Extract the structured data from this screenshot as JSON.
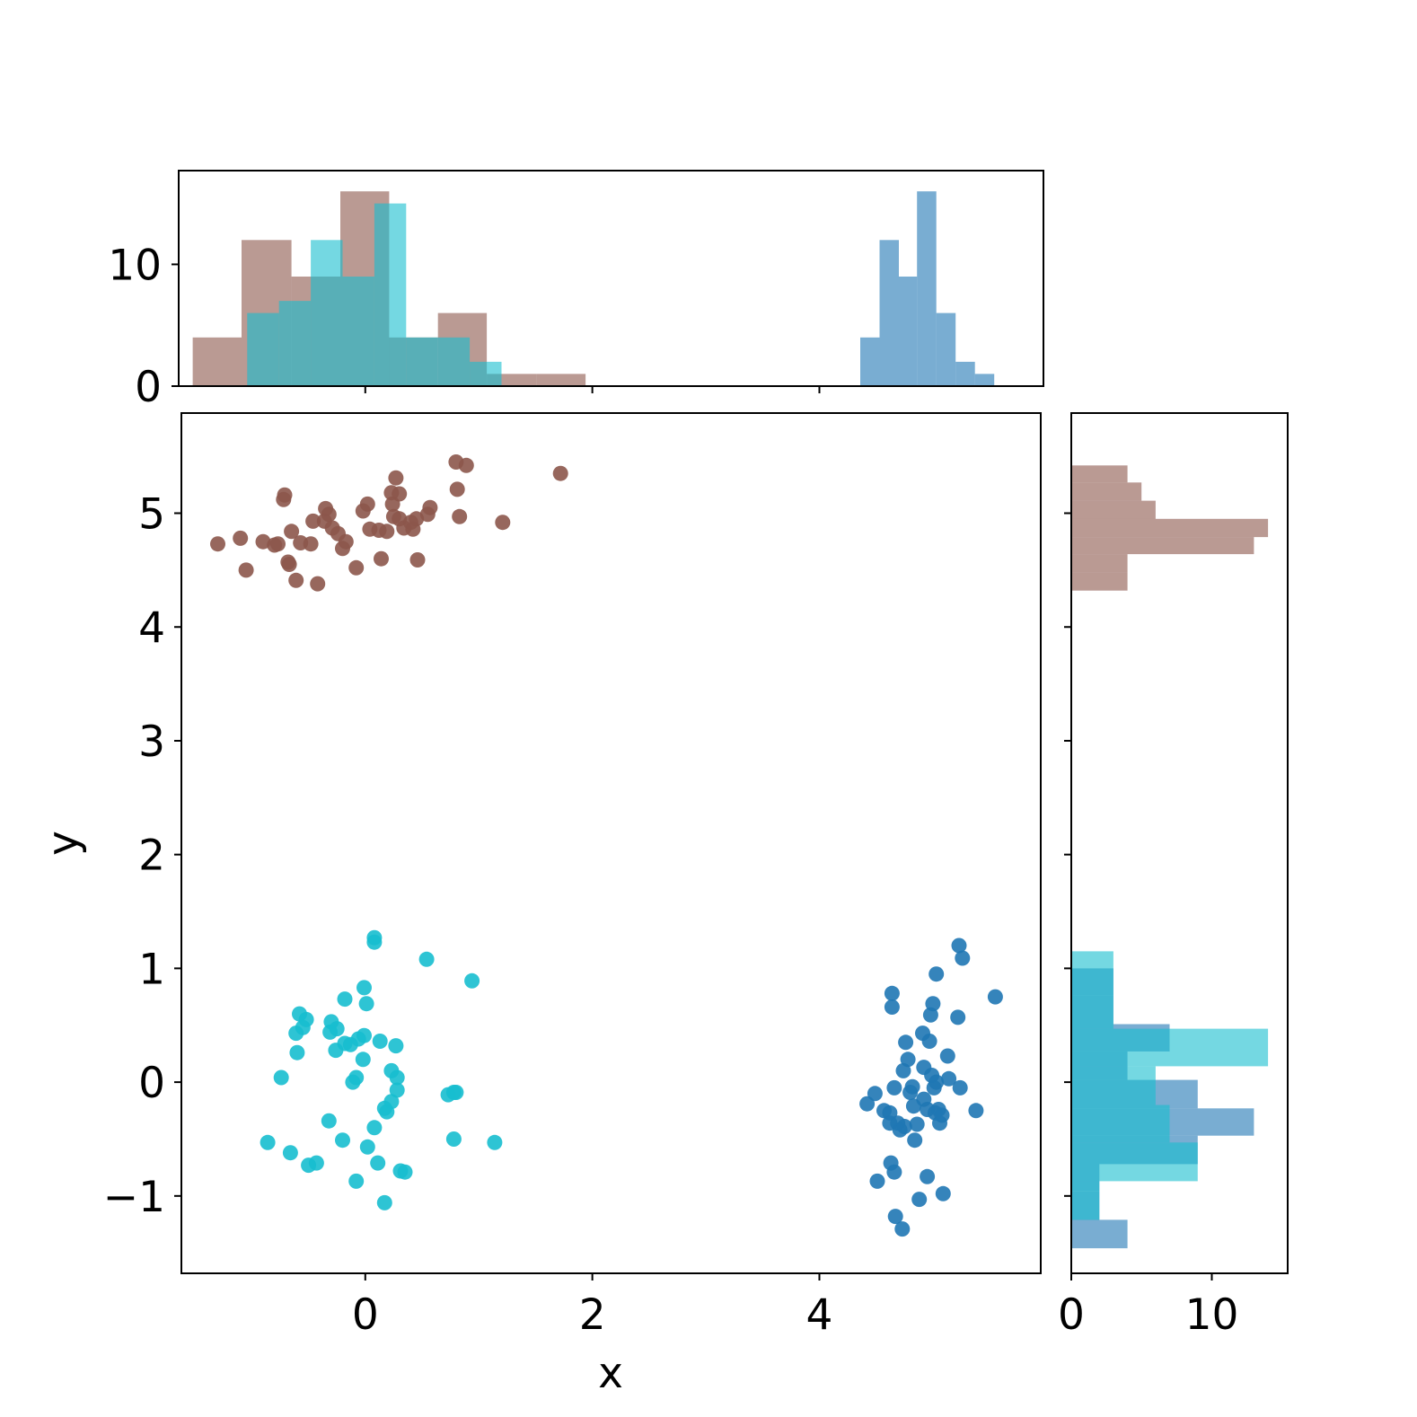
{
  "chart_data": [
    {
      "type": "scatter",
      "xlabel": "x",
      "ylabel": "y",
      "xlim": [
        -1.62,
        5.95
      ],
      "ylim": [
        -1.68,
        5.88
      ],
      "xticks": [
        0,
        2,
        4
      ],
      "yticks": [
        -1,
        0,
        1,
        2,
        3,
        4,
        5
      ],
      "grid": false,
      "series": [
        {
          "color": "#8c564b",
          "points": [
            [
              -1.3,
              4.73
            ],
            [
              -1.1,
              4.78
            ],
            [
              -1.05,
              4.5
            ],
            [
              -0.9,
              4.75
            ],
            [
              -0.8,
              4.72
            ],
            [
              -0.77,
              4.73
            ],
            [
              -0.72,
              5.12
            ],
            [
              -0.71,
              5.16
            ],
            [
              -0.68,
              4.57
            ],
            [
              -0.67,
              4.55
            ],
            [
              -0.65,
              4.84
            ],
            [
              -0.61,
              4.41
            ],
            [
              -0.57,
              4.74
            ],
            [
              -0.48,
              4.73
            ],
            [
              -0.46,
              4.93
            ],
            [
              -0.42,
              4.38
            ],
            [
              -0.36,
              4.93
            ],
            [
              -0.35,
              5.04
            ],
            [
              -0.32,
              4.99
            ],
            [
              -0.29,
              4.87
            ],
            [
              -0.24,
              4.82
            ],
            [
              -0.2,
              4.69
            ],
            [
              -0.17,
              4.75
            ],
            [
              -0.08,
              4.52
            ],
            [
              -0.02,
              5.02
            ],
            [
              0.02,
              5.08
            ],
            [
              0.04,
              4.86
            ],
            [
              0.12,
              4.85
            ],
            [
              0.14,
              4.6
            ],
            [
              0.19,
              4.84
            ],
            [
              0.23,
              5.18
            ],
            [
              0.24,
              5.08
            ],
            [
              0.25,
              4.97
            ],
            [
              0.27,
              5.31
            ],
            [
              0.3,
              5.17
            ],
            [
              0.3,
              4.95
            ],
            [
              0.34,
              4.87
            ],
            [
              0.4,
              4.92
            ],
            [
              0.42,
              4.86
            ],
            [
              0.45,
              4.95
            ],
            [
              0.46,
              4.59
            ],
            [
              0.55,
              4.99
            ],
            [
              0.57,
              5.05
            ],
            [
              0.8,
              5.45
            ],
            [
              0.81,
              5.21
            ],
            [
              0.83,
              4.97
            ],
            [
              0.89,
              5.42
            ],
            [
              1.21,
              4.92
            ],
            [
              1.72,
              5.35
            ]
          ]
        },
        {
          "color": "#17becf",
          "points": [
            [
              -0.86,
              -0.53
            ],
            [
              -0.74,
              0.04
            ],
            [
              -0.66,
              -0.62
            ],
            [
              -0.61,
              0.43
            ],
            [
              -0.6,
              0.26
            ],
            [
              -0.58,
              0.6
            ],
            [
              -0.55,
              0.48
            ],
            [
              -0.52,
              0.55
            ],
            [
              -0.5,
              -0.73
            ],
            [
              -0.43,
              -0.71
            ],
            [
              -0.32,
              -0.34
            ],
            [
              -0.31,
              0.44
            ],
            [
              -0.3,
              0.53
            ],
            [
              -0.26,
              0.28
            ],
            [
              -0.25,
              0.47
            ],
            [
              -0.2,
              -0.51
            ],
            [
              -0.18,
              0.73
            ],
            [
              -0.18,
              0.34
            ],
            [
              -0.13,
              0.33
            ],
            [
              -0.11,
              0.0
            ],
            [
              -0.08,
              0.04
            ],
            [
              -0.08,
              -0.87
            ],
            [
              -0.06,
              0.38
            ],
            [
              -0.02,
              0.2
            ],
            [
              -0.01,
              0.41
            ],
            [
              -0.01,
              0.83
            ],
            [
              0.01,
              0.69
            ],
            [
              0.02,
              -0.57
            ],
            [
              0.08,
              -0.4
            ],
            [
              0.08,
              1.27
            ],
            [
              0.08,
              1.23
            ],
            [
              0.11,
              -0.71
            ],
            [
              0.13,
              0.36
            ],
            [
              0.17,
              -0.23
            ],
            [
              0.19,
              -0.26
            ],
            [
              0.17,
              -1.06
            ],
            [
              0.23,
              0.1
            ],
            [
              0.23,
              -0.17
            ],
            [
              0.27,
              0.32
            ],
            [
              0.28,
              0.04
            ],
            [
              0.28,
              -0.07
            ],
            [
              0.31,
              -0.78
            ],
            [
              0.35,
              -0.79
            ],
            [
              0.54,
              1.08
            ],
            [
              0.73,
              -0.11
            ],
            [
              0.78,
              -0.09
            ],
            [
              0.78,
              -0.5
            ],
            [
              0.8,
              -0.09
            ],
            [
              0.94,
              0.89
            ],
            [
              1.14,
              -0.53
            ]
          ]
        },
        {
          "color": "#1f77b4",
          "points": [
            [
              4.42,
              -0.19
            ],
            [
              4.49,
              -0.1
            ],
            [
              4.51,
              -0.87
            ],
            [
              4.57,
              -0.25
            ],
            [
              4.62,
              -0.36
            ],
            [
              4.62,
              -0.27
            ],
            [
              4.63,
              -0.71
            ],
            [
              4.64,
              0.78
            ],
            [
              4.64,
              0.66
            ],
            [
              4.66,
              -0.79
            ],
            [
              4.66,
              -0.05
            ],
            [
              4.67,
              -1.18
            ],
            [
              4.69,
              -0.36
            ],
            [
              4.71,
              -0.42
            ],
            [
              4.73,
              -1.29
            ],
            [
              4.74,
              0.1
            ],
            [
              4.75,
              -0.39
            ],
            [
              4.76,
              0.35
            ],
            [
              4.78,
              0.2
            ],
            [
              4.8,
              -0.09
            ],
            [
              4.82,
              -0.04
            ],
            [
              4.83,
              -0.21
            ],
            [
              4.84,
              -0.51
            ],
            [
              4.86,
              -0.37
            ],
            [
              4.88,
              -1.03
            ],
            [
              4.91,
              0.43
            ],
            [
              4.92,
              -0.15
            ],
            [
              4.92,
              0.13
            ],
            [
              4.95,
              -0.83
            ],
            [
              4.95,
              -0.24
            ],
            [
              4.97,
              0.36
            ],
            [
              4.98,
              0.59
            ],
            [
              4.99,
              0.06
            ],
            [
              5.0,
              0.69
            ],
            [
              5.01,
              -0.05
            ],
            [
              5.02,
              -0.27
            ],
            [
              5.03,
              0.95
            ],
            [
              5.03,
              0.0
            ],
            [
              5.05,
              -0.24
            ],
            [
              5.06,
              -0.36
            ],
            [
              5.08,
              -0.29
            ],
            [
              5.09,
              -0.98
            ],
            [
              5.13,
              0.23
            ],
            [
              5.14,
              0.03
            ],
            [
              5.22,
              0.57
            ],
            [
              5.24,
              -0.05
            ],
            [
              5.23,
              1.2
            ],
            [
              5.26,
              1.09
            ],
            [
              5.38,
              -0.25
            ],
            [
              5.55,
              0.75
            ]
          ]
        }
      ]
    },
    {
      "type": "histogram",
      "orientation": "vertical",
      "ylim": [
        0,
        17.7
      ],
      "yticks": [
        0,
        10
      ],
      "series": [
        {
          "color": "#8c564b",
          "bins": [
            [
              -1.52,
              -1.09,
              4
            ],
            [
              -1.09,
              -0.65,
              12
            ],
            [
              -0.65,
              -0.22,
              9
            ],
            [
              -0.22,
              0.21,
              16
            ],
            [
              0.21,
              0.64,
              4
            ],
            [
              0.64,
              1.07,
              6
            ],
            [
              1.07,
              1.51,
              1
            ],
            [
              1.51,
              1.94,
              1
            ]
          ]
        },
        {
          "color": "#17becf",
          "bins": [
            [
              -1.04,
              -0.76,
              6
            ],
            [
              -0.76,
              -0.48,
              7
            ],
            [
              -0.48,
              -0.2,
              12
            ],
            [
              -0.2,
              0.08,
              9
            ],
            [
              0.08,
              0.36,
              15
            ],
            [
              0.36,
              0.64,
              4
            ],
            [
              0.64,
              0.92,
              4
            ],
            [
              0.92,
              1.2,
              2
            ]
          ]
        },
        {
          "color": "#1f77b4",
          "bins": [
            [
              4.36,
              4.53,
              4
            ],
            [
              4.53,
              4.7,
              12
            ],
            [
              4.7,
              4.86,
              9
            ],
            [
              4.86,
              5.03,
              16
            ],
            [
              5.03,
              5.2,
              6
            ],
            [
              5.2,
              5.37,
              2
            ],
            [
              5.37,
              5.54,
              1
            ]
          ]
        }
      ]
    },
    {
      "type": "histogram",
      "orientation": "horizontal",
      "xlim": [
        0,
        15.4
      ],
      "xticks": [
        0,
        10
      ],
      "series": [
        {
          "color": "#8c564b",
          "bins": [
            [
              4.32,
              4.48,
              4
            ],
            [
              4.48,
              4.64,
              4
            ],
            [
              4.64,
              4.79,
              13
            ],
            [
              4.79,
              4.95,
              14
            ],
            [
              4.95,
              5.11,
              6
            ],
            [
              5.11,
              5.27,
              5
            ],
            [
              5.27,
              5.42,
              4
            ]
          ]
        },
        {
          "color": "#1f77b4",
          "bins": [
            [
              -1.46,
              -1.21,
              4
            ],
            [
              -1.21,
              -0.96,
              2
            ],
            [
              -0.96,
              -0.72,
              2
            ],
            [
              -0.72,
              -0.47,
              9
            ],
            [
              -0.47,
              -0.23,
              13
            ],
            [
              -0.23,
              0.02,
              9
            ],
            [
              0.02,
              0.27,
              4
            ],
            [
              0.27,
              0.51,
              7
            ],
            [
              0.51,
              0.76,
              3
            ],
            [
              0.76,
              1.0,
              3
            ]
          ]
        },
        {
          "color": "#17becf",
          "bins": [
            [
              -1.21,
              -0.87,
              2
            ],
            [
              -0.87,
              -0.53,
              9
            ],
            [
              -0.53,
              -0.2,
              7
            ],
            [
              -0.2,
              0.14,
              6
            ],
            [
              0.14,
              0.47,
              14
            ],
            [
              0.47,
              0.81,
              3
            ],
            [
              0.81,
              1.15,
              3
            ]
          ]
        }
      ]
    }
  ]
}
